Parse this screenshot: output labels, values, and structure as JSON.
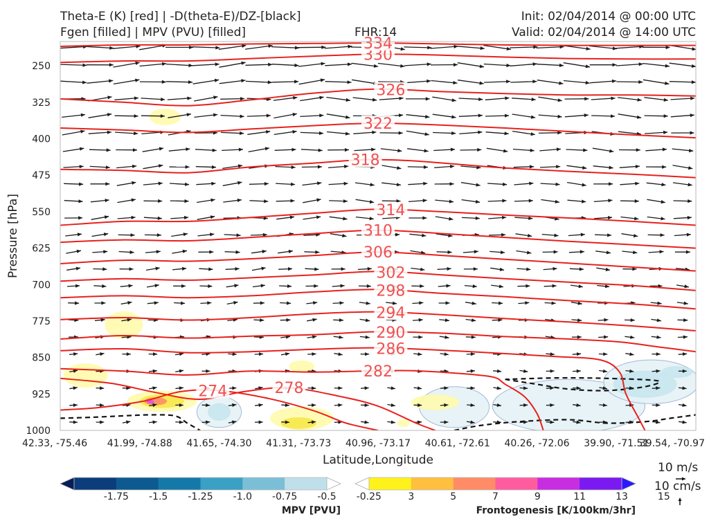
{
  "header": {
    "left_line1": "Theta-E (K) [red] | -D(theta-E)/DZ-[black]",
    "left_line2": "Fgen [filled] | MPV (PVU) [filled]",
    "fhr": "FHR:14",
    "init": "Init: 02/04/2014 @ 00:00 UTC",
    "valid": "Valid: 02/04/2014 @ 14:00 UTC"
  },
  "chart_data": {
    "type": "cross-section",
    "xlabel": "Latitude,Longitude",
    "ylabel": "Pressure [hPa]",
    "x_ticks": [
      "42.33, -75.46",
      "41.99, -74.88",
      "41.65, -74.30",
      "41.31, -73.73",
      "40.96, -73.17",
      "40.61, -72.61",
      "40.26, -72.06",
      "39.90, -71.51",
      "39.54, -70.97"
    ],
    "y_ticks": [
      250,
      325,
      400,
      475,
      550,
      625,
      700,
      775,
      850,
      925,
      1000
    ],
    "ylim": [
      200,
      1000
    ],
    "y_inverted": true,
    "theta_e_contours": [
      {
        "label": "274",
        "points": [
          [
            0.0,
            958
          ],
          [
            0.06,
            953
          ],
          [
            0.13,
            940
          ],
          [
            0.19,
            920
          ],
          [
            0.25,
            918
          ],
          [
            0.33,
            935
          ],
          [
            0.4,
            960
          ],
          [
            0.45,
            985
          ],
          [
            0.5,
            1000
          ]
        ]
      },
      {
        "label": "278",
        "points": [
          [
            0.0,
            893
          ],
          [
            0.08,
            903
          ],
          [
            0.15,
            922
          ],
          [
            0.22,
            936
          ],
          [
            0.29,
            920
          ],
          [
            0.36,
            912
          ],
          [
            0.44,
            930
          ],
          [
            0.5,
            950
          ],
          [
            0.56,
            985
          ],
          [
            0.59,
            1000
          ]
        ]
      },
      {
        "label": "282",
        "points": [
          [
            0.0,
            873
          ],
          [
            0.1,
            878
          ],
          [
            0.2,
            886
          ],
          [
            0.3,
            878
          ],
          [
            0.4,
            880
          ],
          [
            0.48,
            878
          ],
          [
            0.55,
            877
          ],
          [
            0.62,
            882
          ],
          [
            0.68,
            890
          ],
          [
            0.7,
            905
          ],
          [
            0.73,
            930
          ],
          [
            0.75,
            965
          ],
          [
            0.76,
            1000
          ]
        ]
      },
      {
        "label": "286",
        "points": [
          [
            0.0,
            836
          ],
          [
            0.1,
            832
          ],
          [
            0.2,
            840
          ],
          [
            0.3,
            838
          ],
          [
            0.4,
            833
          ],
          [
            0.5,
            830
          ],
          [
            0.6,
            835
          ],
          [
            0.7,
            842
          ],
          [
            0.78,
            848
          ],
          [
            0.85,
            855
          ],
          [
            0.88,
            880
          ],
          [
            0.89,
            925
          ],
          [
            0.91,
            975
          ],
          [
            0.92,
            1000
          ]
        ]
      },
      {
        "label": "290",
        "points": [
          [
            0.0,
            812
          ],
          [
            0.1,
            805
          ],
          [
            0.2,
            810
          ],
          [
            0.3,
            806
          ],
          [
            0.4,
            803
          ],
          [
            0.5,
            797
          ],
          [
            0.6,
            800
          ],
          [
            0.7,
            807
          ],
          [
            0.8,
            812
          ],
          [
            0.88,
            818
          ],
          [
            0.94,
            828
          ],
          [
            1.0,
            838
          ]
        ]
      },
      {
        "label": "294",
        "points": [
          [
            0.0,
            772
          ],
          [
            0.1,
            768
          ],
          [
            0.2,
            773
          ],
          [
            0.3,
            768
          ],
          [
            0.4,
            760
          ],
          [
            0.5,
            756
          ],
          [
            0.6,
            762
          ],
          [
            0.7,
            770
          ],
          [
            0.8,
            777
          ],
          [
            0.9,
            785
          ],
          [
            1.0,
            795
          ]
        ]
      },
      {
        "label": "298",
        "points": [
          [
            0.0,
            727
          ],
          [
            0.1,
            723
          ],
          [
            0.2,
            727
          ],
          [
            0.3,
            723
          ],
          [
            0.4,
            715
          ],
          [
            0.5,
            710
          ],
          [
            0.6,
            718
          ],
          [
            0.7,
            725
          ],
          [
            0.8,
            733
          ],
          [
            0.9,
            740
          ],
          [
            1.0,
            750
          ]
        ]
      },
      {
        "label": "302",
        "points": [
          [
            0.0,
            693
          ],
          [
            0.1,
            688
          ],
          [
            0.2,
            691
          ],
          [
            0.3,
            686
          ],
          [
            0.4,
            680
          ],
          [
            0.5,
            673
          ],
          [
            0.6,
            680
          ],
          [
            0.7,
            688
          ],
          [
            0.8,
            695
          ],
          [
            0.9,
            702
          ],
          [
            1.0,
            712
          ]
        ]
      },
      {
        "label": "306",
        "points": [
          [
            0.0,
            657
          ],
          [
            0.1,
            650
          ],
          [
            0.2,
            652
          ],
          [
            0.3,
            647
          ],
          [
            0.4,
            640
          ],
          [
            0.5,
            633
          ],
          [
            0.6,
            640
          ],
          [
            0.7,
            648
          ],
          [
            0.8,
            656
          ],
          [
            0.9,
            664
          ],
          [
            1.0,
            672
          ]
        ]
      },
      {
        "label": "310",
        "points": [
          [
            0.0,
            613
          ],
          [
            0.1,
            608
          ],
          [
            0.2,
            610
          ],
          [
            0.3,
            603
          ],
          [
            0.4,
            595
          ],
          [
            0.5,
            588
          ],
          [
            0.6,
            595
          ],
          [
            0.7,
            603
          ],
          [
            0.8,
            611
          ],
          [
            0.9,
            618
          ],
          [
            1.0,
            625
          ]
        ]
      },
      {
        "label": "314",
        "points": [
          [
            0.0,
            578
          ],
          [
            0.1,
            570
          ],
          [
            0.2,
            570
          ],
          [
            0.3,
            562
          ],
          [
            0.4,
            553
          ],
          [
            0.5,
            545
          ],
          [
            0.6,
            550
          ],
          [
            0.7,
            557
          ],
          [
            0.8,
            563
          ],
          [
            0.9,
            570
          ],
          [
            1.0,
            578
          ]
        ]
      },
      {
        "label": "318",
        "points": [
          [
            0.0,
            463
          ],
          [
            0.1,
            465
          ],
          [
            0.2,
            470
          ],
          [
            0.3,
            458
          ],
          [
            0.4,
            450
          ],
          [
            0.48,
            443
          ],
          [
            0.55,
            445
          ],
          [
            0.62,
            452
          ],
          [
            0.7,
            460
          ],
          [
            0.8,
            467
          ],
          [
            0.9,
            473
          ],
          [
            1.0,
            480
          ]
        ]
      },
      {
        "label": "322",
        "points": [
          [
            0.0,
            378
          ],
          [
            0.1,
            382
          ],
          [
            0.2,
            387
          ],
          [
            0.3,
            380
          ],
          [
            0.4,
            373
          ],
          [
            0.5,
            368
          ],
          [
            0.6,
            372
          ],
          [
            0.7,
            378
          ],
          [
            0.8,
            385
          ],
          [
            0.9,
            392
          ],
          [
            1.0,
            398
          ]
        ]
      },
      {
        "label": "326",
        "points": [
          [
            0.0,
            318
          ],
          [
            0.1,
            325
          ],
          [
            0.2,
            332
          ],
          [
            0.3,
            320
          ],
          [
            0.4,
            306
          ],
          [
            0.5,
            298
          ],
          [
            0.6,
            303
          ],
          [
            0.7,
            307
          ],
          [
            0.8,
            310
          ],
          [
            0.9,
            310
          ],
          [
            1.0,
            312
          ]
        ]
      },
      {
        "label": "330",
        "points": [
          [
            0.0,
            243
          ],
          [
            0.1,
            240
          ],
          [
            0.2,
            240
          ],
          [
            0.3,
            235
          ],
          [
            0.4,
            230
          ],
          [
            0.5,
            226
          ],
          [
            0.6,
            228
          ],
          [
            0.7,
            232
          ],
          [
            0.8,
            235
          ],
          [
            0.9,
            236
          ],
          [
            1.0,
            236
          ]
        ]
      },
      {
        "label": "334",
        "points": [
          [
            0.0,
            210
          ],
          [
            0.1,
            207
          ],
          [
            0.2,
            207
          ],
          [
            0.3,
            205
          ],
          [
            0.4,
            204
          ],
          [
            0.5,
            203
          ],
          [
            0.6,
            205
          ],
          [
            0.7,
            207
          ],
          [
            0.8,
            208
          ],
          [
            0.9,
            208
          ],
          [
            1.0,
            208
          ]
        ]
      }
    ],
    "stability_contours": [
      {
        "points": [
          [
            0.0,
            975
          ],
          [
            0.05,
            973
          ],
          [
            0.1,
            970
          ],
          [
            0.14,
            968
          ],
          [
            0.18,
            970
          ],
          [
            0.2,
            985
          ],
          [
            0.22,
            1000
          ]
        ]
      },
      {
        "points": [
          [
            0.62,
            1000
          ],
          [
            0.66,
            990
          ],
          [
            0.72,
            982
          ],
          [
            0.8,
            978
          ],
          [
            0.86,
            985
          ],
          [
            0.92,
            982
          ],
          [
            0.96,
            975
          ],
          [
            1.0,
            968
          ]
        ]
      },
      {
        "points": [
          [
            0.7,
            895
          ],
          [
            0.75,
            905
          ],
          [
            0.8,
            915
          ],
          [
            0.86,
            918
          ],
          [
            0.92,
            910
          ],
          [
            0.94,
            898
          ],
          [
            0.86,
            893
          ],
          [
            0.78,
            892
          ],
          [
            0.7,
            895
          ]
        ]
      }
    ],
    "frontogenesis_regions": [
      {
        "center": [
          0.04,
          887
        ],
        "rx": 0.035,
        "ry": 25,
        "value": 3
      },
      {
        "center": [
          0.1,
          783
        ],
        "rx": 0.03,
        "ry": 28,
        "value": 3
      },
      {
        "center": [
          0.165,
          355
        ],
        "rx": 0.025,
        "ry": 17,
        "value": 3
      },
      {
        "center": [
          0.16,
          940
        ],
        "rx": 0.055,
        "ry": 22,
        "value": 3
      },
      {
        "center": [
          0.16,
          940
        ],
        "rx": 0.035,
        "ry": 14,
        "value": 5
      },
      {
        "center": [
          0.15,
          940
        ],
        "rx": 0.018,
        "ry": 8,
        "value": 9
      },
      {
        "center": [
          0.142,
          941
        ],
        "rx": 0.006,
        "ry": 4,
        "value": 13
      },
      {
        "center": [
          0.38,
          975
        ],
        "rx": 0.05,
        "ry": 24,
        "value": 3
      },
      {
        "center": [
          0.375,
          985
        ],
        "rx": 0.028,
        "ry": 12,
        "value": 5
      },
      {
        "center": [
          0.38,
          868
        ],
        "rx": 0.02,
        "ry": 12,
        "value": 3
      },
      {
        "center": [
          0.59,
          942
        ],
        "rx": 0.038,
        "ry": 16,
        "value": 3
      },
      {
        "center": [
          0.54,
          985
        ],
        "rx": 0.01,
        "ry": 8,
        "value": 3
      }
    ],
    "mpv_regions": [
      {
        "center": [
          0.25,
          962
        ],
        "rx": 0.035,
        "ry": 32,
        "value": -0.25
      },
      {
        "center": [
          0.25,
          962
        ],
        "rx": 0.018,
        "ry": 18,
        "value": -0.5
      },
      {
        "center": [
          0.62,
          952
        ],
        "rx": 0.055,
        "ry": 42,
        "value": -0.25
      },
      {
        "center": [
          0.8,
          950
        ],
        "rx": 0.12,
        "ry": 55,
        "value": -0.25
      },
      {
        "center": [
          0.93,
          900
        ],
        "rx": 0.075,
        "ry": 45,
        "value": -0.25
      },
      {
        "center": [
          0.92,
          905
        ],
        "rx": 0.05,
        "ry": 28,
        "value": -0.5
      },
      {
        "center": [
          0.97,
          880
        ],
        "rx": 0.025,
        "ry": 12,
        "value": -0.5
      }
    ],
    "wind_vectors": {
      "x_count": 24,
      "levels": [
        212,
        248,
        283,
        318,
        353,
        388,
        423,
        458,
        493,
        528,
        563,
        598,
        633,
        668,
        703,
        738,
        773,
        808,
        843,
        878,
        913,
        948,
        983
      ],
      "speed_profile": [
        0.75,
        0.72,
        0.7,
        0.62,
        0.6,
        0.58,
        0.52,
        0.48,
        0.45,
        0.42,
        0.4,
        0.35,
        0.3,
        0.25,
        0.2,
        0.15,
        0.12,
        0.1,
        0.06,
        0.05,
        0.04,
        0.04,
        0.04
      ]
    },
    "colorbar_mpv": {
      "label": "MPV [PVU]",
      "ticks": [
        "-1.75",
        "-1.5",
        "-1.25",
        "-1.0",
        "-0.75",
        "-0.5",
        "-0.25"
      ],
      "colors": [
        "#081d58",
        "#0a3d7a",
        "#0d5a91",
        "#1479a8",
        "#3aa0c4",
        "#7bbfd6",
        "#bfe0ea",
        "#ffffff"
      ]
    },
    "colorbar_fgen": {
      "label": "Frontogenesis [K/100km/3hr]",
      "ticks": [
        "3",
        "5",
        "7",
        "9",
        "11",
        "13",
        "15"
      ],
      "colors": [
        "#ffffff",
        "#fff21a",
        "#ffbf3f",
        "#ff8c66",
        "#ff5ca0",
        "#c62ee0",
        "#7a1af0",
        "#2a1aff"
      ]
    },
    "wind_key": {
      "horizontal_label": "10 m/s",
      "vertical_label": "10 cm/s"
    }
  }
}
